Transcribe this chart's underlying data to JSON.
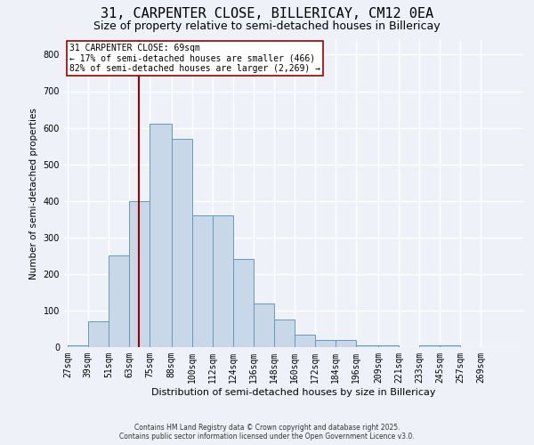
{
  "title": "31, CARPENTER CLOSE, BILLERICAY, CM12 0EA",
  "subtitle": "Size of property relative to semi-detached houses in Billericay",
  "xlabel": "Distribution of semi-detached houses by size in Billericay",
  "ylabel": "Number of semi-detached properties",
  "footer_line1": "Contains HM Land Registry data © Crown copyright and database right 2025.",
  "footer_line2": "Contains public sector information licensed under the Open Government Licence v3.0.",
  "bin_labels": [
    "27sqm",
    "39sqm",
    "51sqm",
    "63sqm",
    "75sqm",
    "88sqm",
    "100sqm",
    "112sqm",
    "124sqm",
    "136sqm",
    "148sqm",
    "160sqm",
    "172sqm",
    "184sqm",
    "196sqm",
    "209sqm",
    "221sqm",
    "233sqm",
    "245sqm",
    "257sqm",
    "269sqm"
  ],
  "bar_values": [
    5,
    70,
    250,
    400,
    610,
    570,
    360,
    360,
    240,
    120,
    75,
    35,
    20,
    20,
    5,
    5,
    0,
    5,
    5,
    0,
    0
  ],
  "bar_color": "#c8d8e8",
  "bar_edge_color": "#6699bb",
  "property_label": "31 CARPENTER CLOSE: 69sqm",
  "annotation_line1": "← 17% of semi-detached houses are smaller (466)",
  "annotation_line2": "82% of semi-detached houses are larger (2,269) →",
  "vline_color": "#990000",
  "vline_x": 69,
  "ylim": [
    0,
    840
  ],
  "yticks": [
    0,
    100,
    200,
    300,
    400,
    500,
    600,
    700,
    800
  ],
  "background_color": "#eef2f8",
  "grid_color": "#ffffff",
  "title_fontsize": 11,
  "subtitle_fontsize": 9
}
